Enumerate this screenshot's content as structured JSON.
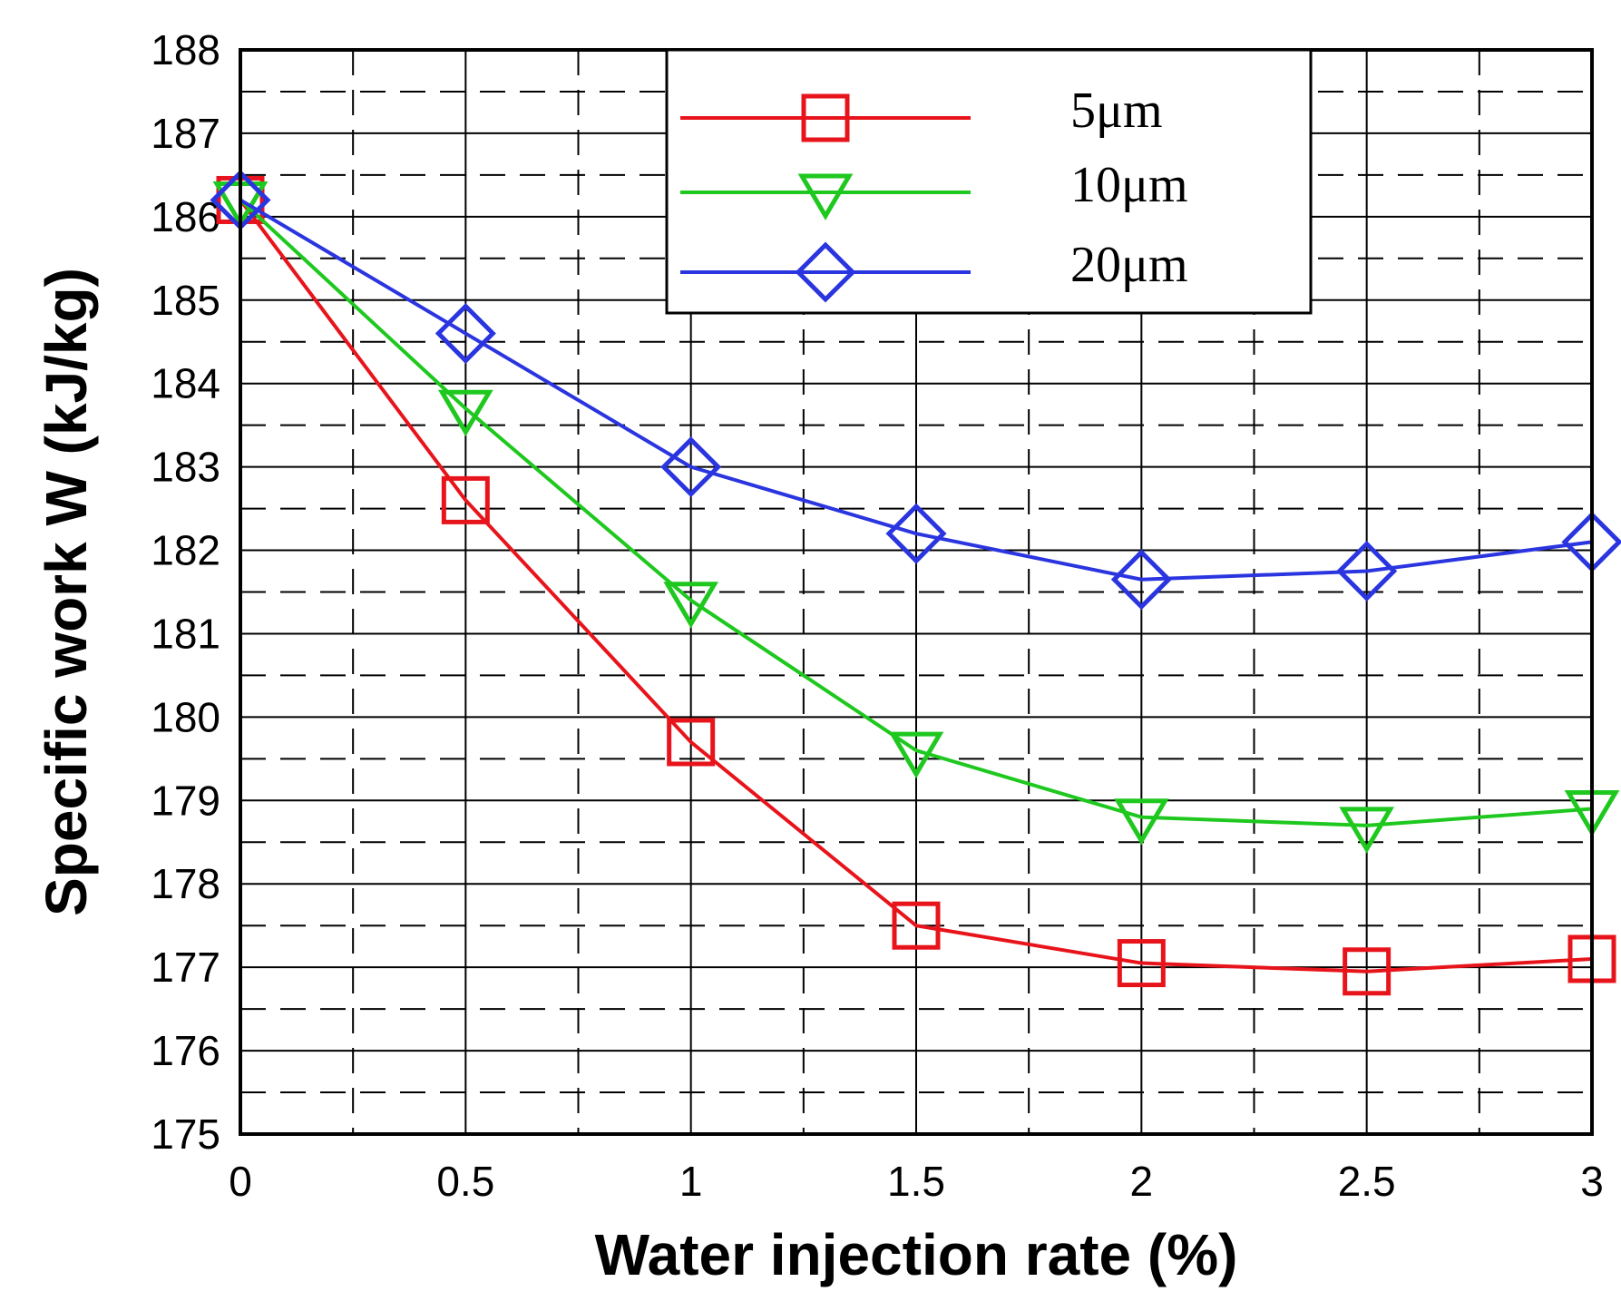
{
  "chart_data": {
    "type": "line",
    "title": "",
    "xlabel": "Water injection rate (%)",
    "ylabel": "Specific work W (kJ/kg)",
    "xlim": [
      0,
      3
    ],
    "ylim": [
      175,
      188
    ],
    "x_ticks": [
      "0",
      "0.5",
      "1",
      "1.5",
      "2",
      "2.5",
      "3"
    ],
    "y_ticks": [
      "175",
      "176",
      "177",
      "178",
      "179",
      "180",
      "181",
      "182",
      "183",
      "184",
      "185",
      "186",
      "187",
      "188"
    ],
    "grid": true,
    "legend_position": "top-right",
    "x": [
      0,
      0.5,
      1,
      1.5,
      2,
      2.5,
      3
    ],
    "series": [
      {
        "name": "5μm",
        "marker": "square",
        "color": "#e8141b",
        "values": [
          186.2,
          182.6,
          179.7,
          177.5,
          177.05,
          176.95,
          177.1
        ]
      },
      {
        "name": "10μm",
        "marker": "triangle-down",
        "color": "#1ec81e",
        "values": [
          186.2,
          183.7,
          181.4,
          179.6,
          178.8,
          178.7,
          178.9
        ]
      },
      {
        "name": "20μm",
        "marker": "diamond",
        "color": "#2a35e0",
        "values": [
          186.2,
          184.6,
          183.0,
          182.2,
          181.65,
          181.75,
          182.1
        ]
      }
    ]
  }
}
